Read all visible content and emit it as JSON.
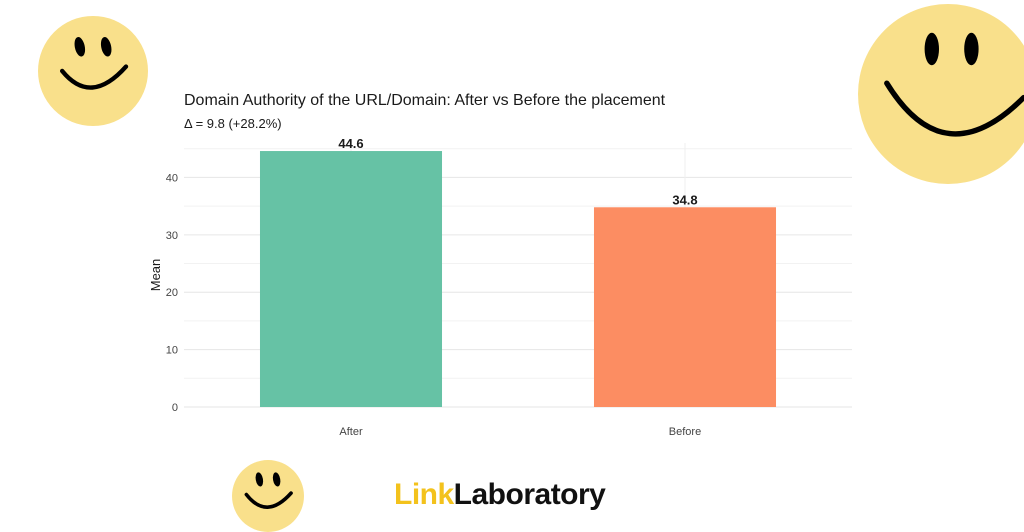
{
  "chart_data": {
    "type": "bar",
    "title": "Domain Authority of the URL/Domain: After vs Before the placement",
    "subtitle": "Δ = 9.8 (+28.2%)",
    "categories": [
      "After",
      "Before"
    ],
    "values": [
      44.6,
      34.8
    ],
    "value_labels": [
      "44.6",
      "34.8"
    ],
    "xlabel": "",
    "ylabel": "Mean",
    "ylim": [
      0,
      46
    ],
    "yticks": [
      0,
      10,
      20,
      30,
      40
    ],
    "grid": true,
    "legend": "none",
    "colors": [
      "#66c2a5",
      "#fc8d62"
    ]
  },
  "logo": {
    "part1": "Link",
    "part2": "Laboratory",
    "colors": {
      "accent": "#f3c21c",
      "text": "#111111"
    }
  },
  "decor": {
    "smiley_color": "#f9e08b",
    "icon": "smiley-face-icon"
  }
}
